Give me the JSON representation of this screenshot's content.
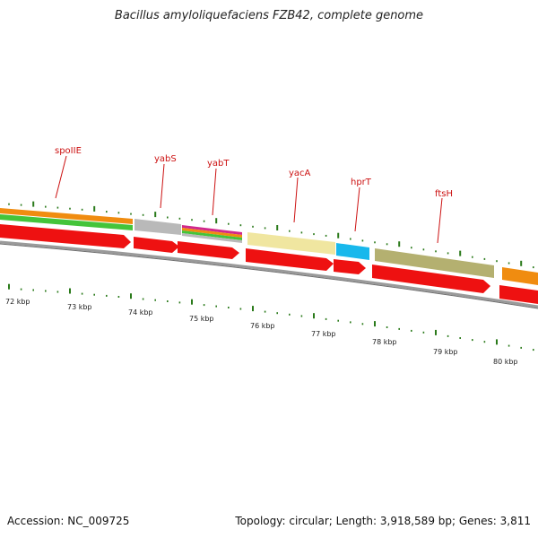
{
  "title": "Bacillus amyloliquefaciens FZB42, complete genome",
  "footer": {
    "accession": "Accession: NC_009725",
    "summary": "Topology: circular; Length: 3,918,589 bp; Genes: 3,811"
  },
  "colors": {
    "cds": "#ee1111",
    "tick": "#2a7a1a",
    "backbone": "#888888",
    "label": "#cc1111"
  },
  "kbp_labels": [
    "72 kbp",
    "73 kbp",
    "74 kbp",
    "75 kbp",
    "76 kbp",
    "77 kbp",
    "78 kbp",
    "79 kbp",
    "80 kbp"
  ],
  "genes": [
    {
      "name": "spoIIE"
    },
    {
      "name": "yabS"
    },
    {
      "name": "yabT"
    },
    {
      "name": "yacA"
    },
    {
      "name": "hprT"
    },
    {
      "name": "ftsH"
    }
  ]
}
